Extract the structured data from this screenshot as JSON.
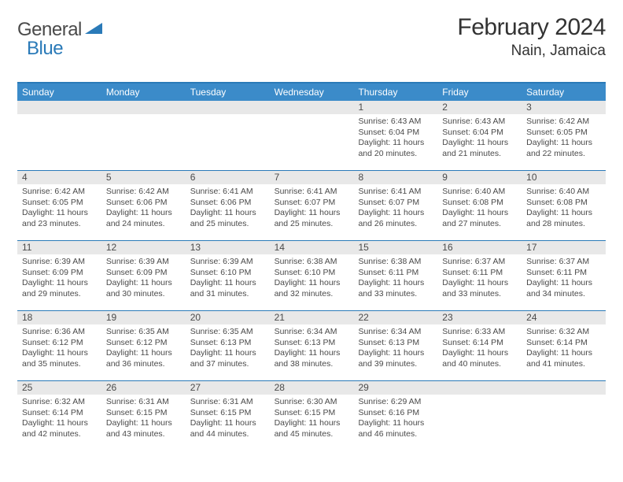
{
  "brand": {
    "word1": "General",
    "word2": "Blue"
  },
  "title": "February 2024",
  "location": "Nain, Jamaica",
  "colors": {
    "header_bg": "#3b8bc9",
    "border": "#2a7ab8",
    "daynum_bg": "#e8e8e8",
    "text": "#4a4a4a"
  },
  "day_names": [
    "Sunday",
    "Monday",
    "Tuesday",
    "Wednesday",
    "Thursday",
    "Friday",
    "Saturday"
  ],
  "weeks": [
    [
      {
        "n": "",
        "sr": "",
        "ss": "",
        "dl": ""
      },
      {
        "n": "",
        "sr": "",
        "ss": "",
        "dl": ""
      },
      {
        "n": "",
        "sr": "",
        "ss": "",
        "dl": ""
      },
      {
        "n": "",
        "sr": "",
        "ss": "",
        "dl": ""
      },
      {
        "n": "1",
        "sr": "6:43 AM",
        "ss": "6:04 PM",
        "dl": "11 hours and 20 minutes."
      },
      {
        "n": "2",
        "sr": "6:43 AM",
        "ss": "6:04 PM",
        "dl": "11 hours and 21 minutes."
      },
      {
        "n": "3",
        "sr": "6:42 AM",
        "ss": "6:05 PM",
        "dl": "11 hours and 22 minutes."
      }
    ],
    [
      {
        "n": "4",
        "sr": "6:42 AM",
        "ss": "6:05 PM",
        "dl": "11 hours and 23 minutes."
      },
      {
        "n": "5",
        "sr": "6:42 AM",
        "ss": "6:06 PM",
        "dl": "11 hours and 24 minutes."
      },
      {
        "n": "6",
        "sr": "6:41 AM",
        "ss": "6:06 PM",
        "dl": "11 hours and 25 minutes."
      },
      {
        "n": "7",
        "sr": "6:41 AM",
        "ss": "6:07 PM",
        "dl": "11 hours and 25 minutes."
      },
      {
        "n": "8",
        "sr": "6:41 AM",
        "ss": "6:07 PM",
        "dl": "11 hours and 26 minutes."
      },
      {
        "n": "9",
        "sr": "6:40 AM",
        "ss": "6:08 PM",
        "dl": "11 hours and 27 minutes."
      },
      {
        "n": "10",
        "sr": "6:40 AM",
        "ss": "6:08 PM",
        "dl": "11 hours and 28 minutes."
      }
    ],
    [
      {
        "n": "11",
        "sr": "6:39 AM",
        "ss": "6:09 PM",
        "dl": "11 hours and 29 minutes."
      },
      {
        "n": "12",
        "sr": "6:39 AM",
        "ss": "6:09 PM",
        "dl": "11 hours and 30 minutes."
      },
      {
        "n": "13",
        "sr": "6:39 AM",
        "ss": "6:10 PM",
        "dl": "11 hours and 31 minutes."
      },
      {
        "n": "14",
        "sr": "6:38 AM",
        "ss": "6:10 PM",
        "dl": "11 hours and 32 minutes."
      },
      {
        "n": "15",
        "sr": "6:38 AM",
        "ss": "6:11 PM",
        "dl": "11 hours and 33 minutes."
      },
      {
        "n": "16",
        "sr": "6:37 AM",
        "ss": "6:11 PM",
        "dl": "11 hours and 33 minutes."
      },
      {
        "n": "17",
        "sr": "6:37 AM",
        "ss": "6:11 PM",
        "dl": "11 hours and 34 minutes."
      }
    ],
    [
      {
        "n": "18",
        "sr": "6:36 AM",
        "ss": "6:12 PM",
        "dl": "11 hours and 35 minutes."
      },
      {
        "n": "19",
        "sr": "6:35 AM",
        "ss": "6:12 PM",
        "dl": "11 hours and 36 minutes."
      },
      {
        "n": "20",
        "sr": "6:35 AM",
        "ss": "6:13 PM",
        "dl": "11 hours and 37 minutes."
      },
      {
        "n": "21",
        "sr": "6:34 AM",
        "ss": "6:13 PM",
        "dl": "11 hours and 38 minutes."
      },
      {
        "n": "22",
        "sr": "6:34 AM",
        "ss": "6:13 PM",
        "dl": "11 hours and 39 minutes."
      },
      {
        "n": "23",
        "sr": "6:33 AM",
        "ss": "6:14 PM",
        "dl": "11 hours and 40 minutes."
      },
      {
        "n": "24",
        "sr": "6:32 AM",
        "ss": "6:14 PM",
        "dl": "11 hours and 41 minutes."
      }
    ],
    [
      {
        "n": "25",
        "sr": "6:32 AM",
        "ss": "6:14 PM",
        "dl": "11 hours and 42 minutes."
      },
      {
        "n": "26",
        "sr": "6:31 AM",
        "ss": "6:15 PM",
        "dl": "11 hours and 43 minutes."
      },
      {
        "n": "27",
        "sr": "6:31 AM",
        "ss": "6:15 PM",
        "dl": "11 hours and 44 minutes."
      },
      {
        "n": "28",
        "sr": "6:30 AM",
        "ss": "6:15 PM",
        "dl": "11 hours and 45 minutes."
      },
      {
        "n": "29",
        "sr": "6:29 AM",
        "ss": "6:16 PM",
        "dl": "11 hours and 46 minutes."
      },
      {
        "n": "",
        "sr": "",
        "ss": "",
        "dl": ""
      },
      {
        "n": "",
        "sr": "",
        "ss": "",
        "dl": ""
      }
    ]
  ],
  "labels": {
    "sunrise": "Sunrise:",
    "sunset": "Sunset:",
    "daylight": "Daylight:"
  }
}
